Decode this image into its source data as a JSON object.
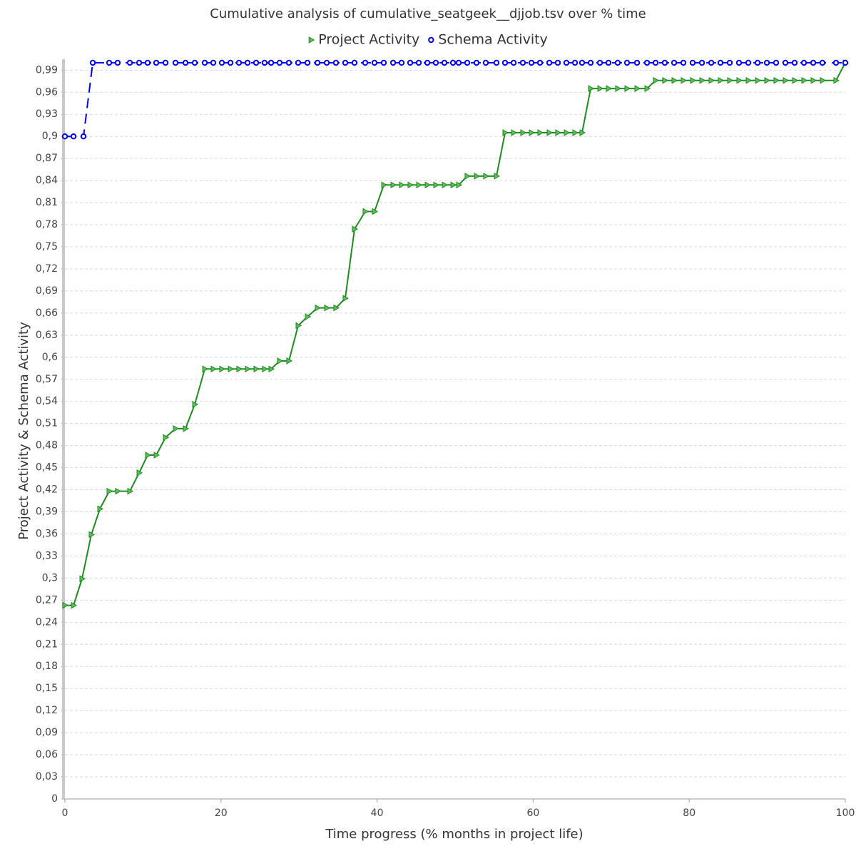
{
  "chart_data": {
    "type": "line",
    "title": "Cumulative analysis of cumulative_seatgeek__djjob.tsv over % time",
    "x_label": "Time progress (% months in project life)",
    "y_label": "Project Activity & Schema Activity",
    "xlim": [
      0,
      100
    ],
    "xticks": [
      0,
      20,
      40,
      60,
      80,
      100
    ],
    "ylim": [
      0,
      1
    ],
    "yticks": [
      0,
      {
        "value": 0.03,
        "label": "0,03"
      },
      {
        "value": 0.06,
        "label": "0,06"
      },
      {
        "value": 0.09,
        "label": "0,09"
      },
      {
        "value": 0.12,
        "label": "0,12"
      },
      {
        "value": 0.15,
        "label": "0,15"
      },
      {
        "value": 0.18,
        "label": "0,18"
      },
      {
        "value": 0.21,
        "label": "0,21"
      },
      {
        "value": 0.24,
        "label": "0,24"
      },
      {
        "value": 0.27,
        "label": "0,27"
      },
      {
        "value": 0.3,
        "label": "0,3"
      },
      {
        "value": 0.33,
        "label": "0,33"
      },
      {
        "value": 0.36,
        "label": "0,36"
      },
      {
        "value": 0.39,
        "label": "0,39"
      },
      {
        "value": 0.42,
        "label": "0,42"
      },
      {
        "value": 0.45,
        "label": "0,45"
      },
      {
        "value": 0.48,
        "label": "0,48"
      },
      {
        "value": 0.51,
        "label": "0,51"
      },
      {
        "value": 0.54,
        "label": "0,54"
      },
      {
        "value": 0.57,
        "label": "0,57"
      },
      {
        "value": 0.6,
        "label": "0,6"
      },
      {
        "value": 0.63,
        "label": "0,63"
      },
      {
        "value": 0.66,
        "label": "0,66"
      },
      {
        "value": 0.69,
        "label": "0,69"
      },
      {
        "value": 0.72,
        "label": "0,72"
      },
      {
        "value": 0.75,
        "label": "0,75"
      },
      {
        "value": 0.78,
        "label": "0,78"
      },
      {
        "value": 0.81,
        "label": "0,81"
      },
      {
        "value": 0.84,
        "label": "0,84"
      },
      {
        "value": 0.87,
        "label": "0,87"
      },
      {
        "value": 0.9,
        "label": "0,9"
      },
      {
        "value": 0.93,
        "label": "0,93"
      },
      {
        "value": 0.96,
        "label": "0,96"
      },
      {
        "value": 0.99,
        "label": "0,99"
      }
    ],
    "grid": true,
    "series": [
      {
        "name": "Project Activity",
        "color": "#1e8c1e",
        "marker": "triangle",
        "dashed": false,
        "x": [
          0,
          1.1,
          2.19,
          3.38,
          4.48,
          5.67,
          6.76,
          8.32,
          9.51,
          10.6,
          11.7,
          12.89,
          14.17,
          15.45,
          16.64,
          17.92,
          19.01,
          20.11,
          21.21,
          22.3,
          23.4,
          24.5,
          25.59,
          26.42,
          27.51,
          28.7,
          29.89,
          31.08,
          32.36,
          33.55,
          34.73,
          35.92,
          37.11,
          38.48,
          39.67,
          40.86,
          42.05,
          43.14,
          44.24,
          45.34,
          46.44,
          47.53,
          48.63,
          49.73,
          50.46,
          51.55,
          52.74,
          53.93,
          55.3,
          56.4,
          57.5,
          58.68,
          59.78,
          60.88,
          62.07,
          63.16,
          64.26,
          65.36,
          66.27,
          67.37,
          68.56,
          69.65,
          70.84,
          72.03,
          73.31,
          74.59,
          75.69,
          76.87,
          78.06,
          79.25,
          80.44,
          81.63,
          82.82,
          84.0,
          85.19,
          86.38,
          87.57,
          88.76,
          89.95,
          91.13,
          92.32,
          93.51,
          94.7,
          95.89,
          97.07,
          98.81,
          100
        ],
        "values": [
          0.263,
          0.263,
          0.299,
          0.359,
          0.394,
          0.418,
          0.418,
          0.418,
          0.443,
          0.467,
          0.467,
          0.491,
          0.503,
          0.503,
          0.536,
          0.584,
          0.584,
          0.584,
          0.584,
          0.584,
          0.584,
          0.584,
          0.584,
          0.584,
          0.595,
          0.595,
          0.643,
          0.655,
          0.667,
          0.667,
          0.667,
          0.68,
          0.774,
          0.798,
          0.798,
          0.834,
          0.834,
          0.834,
          0.834,
          0.834,
          0.834,
          0.834,
          0.834,
          0.834,
          0.834,
          0.846,
          0.846,
          0.846,
          0.846,
          0.905,
          0.905,
          0.905,
          0.905,
          0.905,
          0.905,
          0.905,
          0.905,
          0.905,
          0.905,
          0.965,
          0.965,
          0.965,
          0.965,
          0.965,
          0.965,
          0.965,
          0.976,
          0.976,
          0.976,
          0.976,
          0.976,
          0.976,
          0.976,
          0.976,
          0.976,
          0.976,
          0.976,
          0.976,
          0.976,
          0.976,
          0.976,
          0.976,
          0.976,
          0.976,
          0.976,
          0.976,
          1
        ]
      },
      {
        "name": "Schema Activity",
        "color": "#0000ff",
        "marker": "circle",
        "dashed": true,
        "x": [
          0,
          1.1,
          2.38,
          3.57,
          5.67,
          6.76,
          8.32,
          9.51,
          10.6,
          11.7,
          12.89,
          14.17,
          15.45,
          16.64,
          17.92,
          19.01,
          20.11,
          21.21,
          22.3,
          23.4,
          24.5,
          25.59,
          26.42,
          27.51,
          28.7,
          29.89,
          31.08,
          32.36,
          33.55,
          34.73,
          35.92,
          37.11,
          38.48,
          39.67,
          40.86,
          42.05,
          43.14,
          44.24,
          45.34,
          46.44,
          47.53,
          48.63,
          49.73,
          50.46,
          51.55,
          52.74,
          53.93,
          55.3,
          56.4,
          57.5,
          58.68,
          59.78,
          60.88,
          62.07,
          63.16,
          64.26,
          65.36,
          66.27,
          67.37,
          68.56,
          69.65,
          70.84,
          72.03,
          73.31,
          74.59,
          75.69,
          76.87,
          78.06,
          79.25,
          80.44,
          81.63,
          82.82,
          84.0,
          85.19,
          86.38,
          87.57,
          88.76,
          89.95,
          91.13,
          92.32,
          93.51,
          94.7,
          95.89,
          97.07,
          98.81,
          100
        ],
        "values": [
          0.9,
          0.9,
          0.9,
          1,
          1,
          1,
          1,
          1,
          1,
          1,
          1,
          1,
          1,
          1,
          1,
          1,
          1,
          1,
          1,
          1,
          1,
          1,
          1,
          1,
          1,
          1,
          1,
          1,
          1,
          1,
          1,
          1,
          1,
          1,
          1,
          1,
          1,
          1,
          1,
          1,
          1,
          1,
          1,
          1,
          1,
          1,
          1,
          1,
          1,
          1,
          1,
          1,
          1,
          1,
          1,
          1,
          1,
          1,
          1,
          1,
          1,
          1,
          1,
          1,
          1,
          1,
          1,
          1,
          1,
          1,
          1,
          1,
          1,
          1,
          1,
          1,
          1,
          1,
          1,
          1,
          1,
          1,
          1,
          1,
          1,
          1
        ]
      }
    ]
  }
}
